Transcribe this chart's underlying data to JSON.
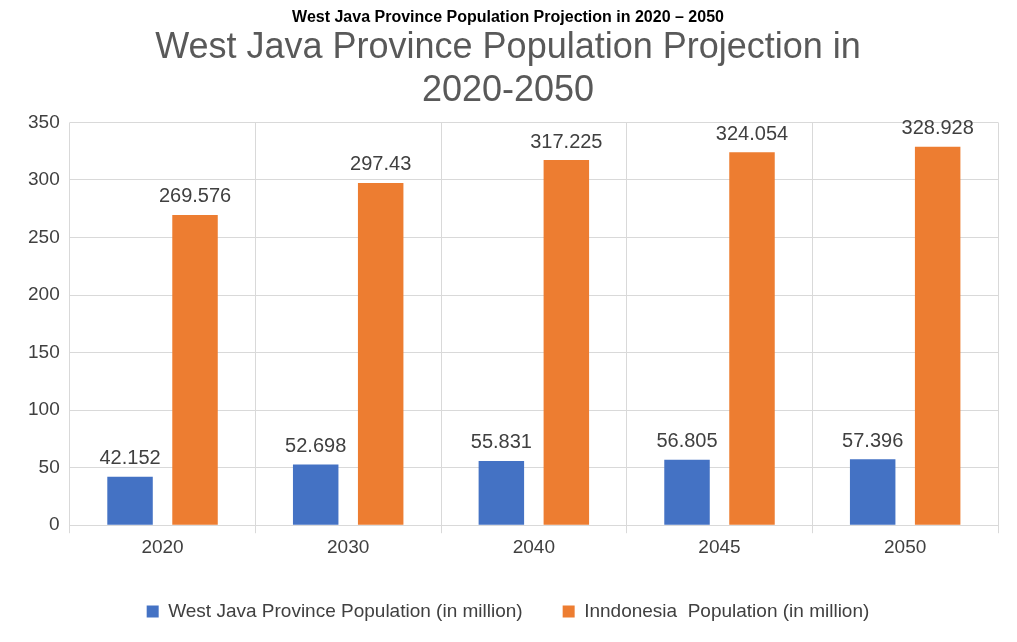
{
  "chart_data": {
    "type": "bar",
    "title": [
      "West Java Province Population Projection in",
      "2020-2050"
    ],
    "annotations": [
      "West Java Province Population Projection in 2020 – 2050"
    ],
    "categories": [
      "2020",
      "2030",
      "2040",
      "2045",
      "2050"
    ],
    "series": [
      {
        "name": "West Java Province Population (in million)",
        "color": "#4472c4",
        "values": [
          42.152,
          52.698,
          55.831,
          56.805,
          57.396
        ]
      },
      {
        "name": "Inndonesia  Population (in million)",
        "color": "#ed7d31",
        "values": [
          269.576,
          297.43,
          317.225,
          324.054,
          328.928
        ]
      }
    ],
    "ylim": [
      0,
      350
    ],
    "yticks": [
      0,
      50,
      100,
      150,
      200,
      250,
      300,
      350
    ],
    "grid": true,
    "legend": "bottom",
    "data_labels": true
  }
}
